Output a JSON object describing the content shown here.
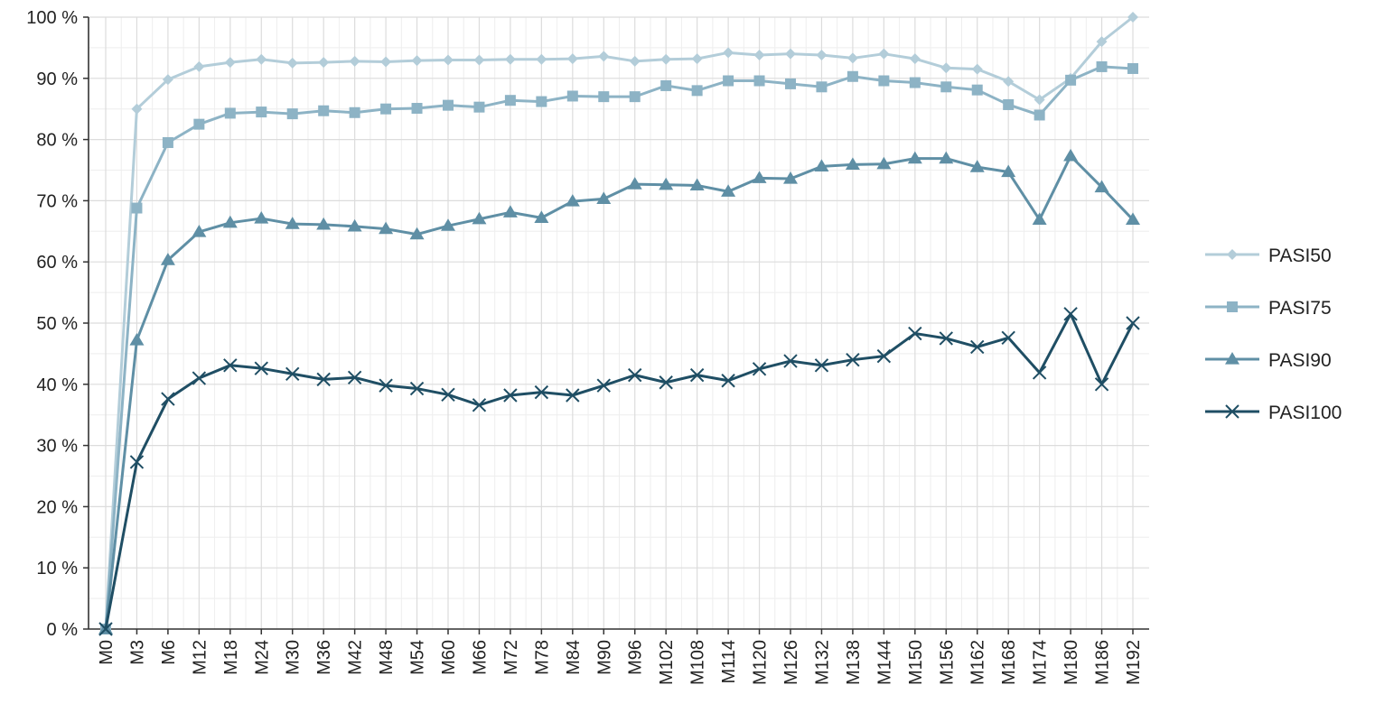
{
  "chart_data": {
    "type": "line",
    "title": "",
    "xlabel": "",
    "ylabel": "",
    "ylim": [
      0,
      100
    ],
    "ytick_values": [
      0,
      10,
      20,
      30,
      40,
      50,
      60,
      70,
      80,
      90,
      100
    ],
    "ytick_labels": [
      "0 %",
      "10 %",
      "20 %",
      "30 %",
      "40 %",
      "50 %",
      "60 %",
      "70 %",
      "80 %",
      "90 %",
      "100 %"
    ],
    "categories": [
      "M0",
      "M3",
      "M6",
      "M12",
      "M18",
      "M24",
      "M30",
      "M36",
      "M42",
      "M48",
      "M54",
      "M60",
      "M66",
      "M72",
      "M78",
      "M84",
      "M90",
      "M96",
      "M102",
      "M108",
      "M114",
      "M120",
      "M126",
      "M132",
      "M138",
      "M144",
      "M150",
      "M156",
      "M162",
      "M168",
      "M174",
      "M180",
      "M186",
      "M192"
    ],
    "grid": true,
    "legend_position": "right",
    "series": [
      {
        "name": "PASI50",
        "color": "#b3cdd9",
        "marker": "diamond",
        "values": [
          0,
          85,
          89.8,
          91.9,
          92.6,
          93.1,
          92.5,
          92.6,
          92.8,
          92.7,
          92.9,
          93.0,
          93.0,
          93.1,
          93.1,
          93.2,
          93.6,
          92.8,
          93.1,
          93.2,
          94.2,
          93.8,
          94.0,
          93.8,
          93.3,
          94.0,
          93.2,
          91.7,
          91.5,
          89.5,
          86.5,
          90.0,
          96.0,
          100
        ]
      },
      {
        "name": "PASI75",
        "color": "#8db3c5",
        "marker": "square",
        "values": [
          0,
          68.8,
          79.5,
          82.5,
          84.3,
          84.5,
          84.2,
          84.7,
          84.4,
          85.0,
          85.1,
          85.6,
          85.3,
          86.4,
          86.2,
          87.1,
          87.0,
          87.0,
          88.8,
          88.0,
          89.6,
          89.6,
          89.1,
          88.6,
          90.3,
          89.6,
          89.3,
          88.6,
          88.1,
          85.7,
          84.0,
          89.7,
          91.9,
          91.6
        ]
      },
      {
        "name": "PASI90",
        "color": "#5f8fa5",
        "marker": "triangle",
        "values": [
          0,
          47.2,
          60.3,
          64.9,
          66.4,
          67.1,
          66.2,
          66.1,
          65.8,
          65.4,
          64.5,
          65.9,
          67.0,
          68.1,
          67.2,
          69.9,
          70.3,
          72.7,
          72.6,
          72.5,
          71.5,
          73.7,
          73.6,
          75.6,
          75.9,
          76.0,
          76.9,
          76.9,
          75.5,
          74.7,
          66.9,
          77.3,
          72.2,
          66.9
        ]
      },
      {
        "name": "PASI100",
        "color": "#1f4e64",
        "marker": "x",
        "values": [
          0,
          27.3,
          37.6,
          41.0,
          43.1,
          42.6,
          41.7,
          40.8,
          41.1,
          39.8,
          39.3,
          38.3,
          36.6,
          38.2,
          38.7,
          38.2,
          39.8,
          41.5,
          40.3,
          41.5,
          40.6,
          42.5,
          43.8,
          43.1,
          44.0,
          44.6,
          48.3,
          47.5,
          46.1,
          47.6,
          41.9,
          51.5,
          40.0,
          50.0
        ]
      }
    ]
  }
}
